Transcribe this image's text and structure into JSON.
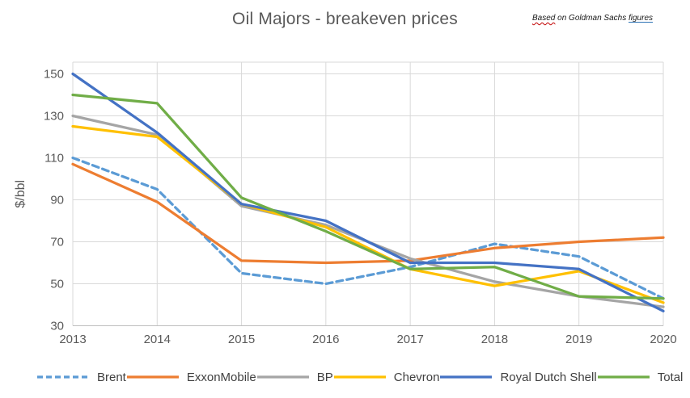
{
  "title": "Oil Majors - breakeven prices",
  "annotation": {
    "based": "Based",
    "middle": " on Goldman Sachs ",
    "link": "figures"
  },
  "chart_data": {
    "type": "line",
    "title": "Oil Majors - breakeven prices",
    "x": [
      "2013",
      "2014",
      "2015",
      "2016",
      "2017",
      "2018",
      "2019",
      "2020"
    ],
    "xlabel": "",
    "ylabel": "$/bbl",
    "ylim": [
      30,
      155
    ],
    "yticks": [
      30,
      50,
      70,
      90,
      110,
      130,
      150
    ],
    "grid": true,
    "legend_position": "bottom",
    "colors": {
      "grid": "#D9D9D9",
      "axis": "#BFBFBF",
      "text": "#595959"
    },
    "series": [
      {
        "name": "Brent",
        "color": "#5B9BD5",
        "dash": true,
        "values": [
          110,
          95,
          55,
          50,
          58,
          69,
          63,
          43
        ]
      },
      {
        "name": "ExxonMobile",
        "color": "#ED7D31",
        "dash": false,
        "values": [
          107,
          89,
          61,
          60,
          61,
          67,
          70,
          72
        ]
      },
      {
        "name": "BP",
        "color": "#A5A5A5",
        "dash": false,
        "values": [
          130,
          121,
          87,
          78,
          62,
          51,
          44,
          39
        ]
      },
      {
        "name": "Chevron",
        "color": "#FFC000",
        "dash": false,
        "values": [
          125,
          120,
          88,
          77,
          57,
          49,
          56,
          41
        ]
      },
      {
        "name": "Royal Dutch Shell",
        "color": "#4472C4",
        "dash": false,
        "values": [
          150,
          122,
          88,
          80,
          60,
          60,
          57,
          37
        ]
      },
      {
        "name": "Total",
        "color": "#70AD47",
        "dash": false,
        "values": [
          140,
          136,
          91,
          75,
          57,
          58,
          44,
          43
        ]
      }
    ]
  }
}
